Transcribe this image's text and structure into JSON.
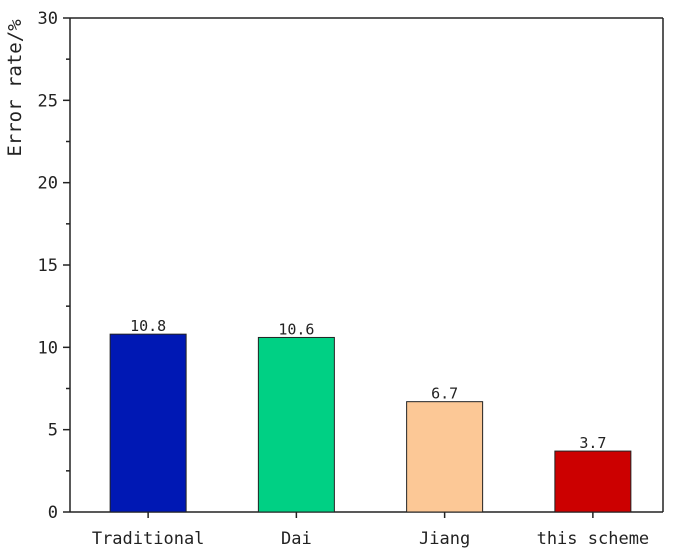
{
  "chart_data": {
    "type": "bar",
    "title": "",
    "xlabel": "",
    "ylabel": "Error rate/%",
    "categories": [
      "Traditional",
      "Dai",
      "Jiang",
      "this scheme"
    ],
    "values": [
      10.8,
      10.6,
      6.7,
      3.7
    ],
    "value_labels": [
      "10.8",
      "10.6",
      "6.7",
      "3.7"
    ],
    "colors": [
      "#0018b4",
      "#00d084",
      "#fcc896",
      "#cc0000"
    ],
    "ylim": [
      0,
      30
    ],
    "yticks": [
      0,
      5,
      10,
      15,
      20,
      25,
      30
    ],
    "ytick_labels": [
      "0",
      "5",
      "10",
      "15",
      "20",
      "25",
      "30"
    ],
    "grid": false,
    "legend": "none"
  }
}
